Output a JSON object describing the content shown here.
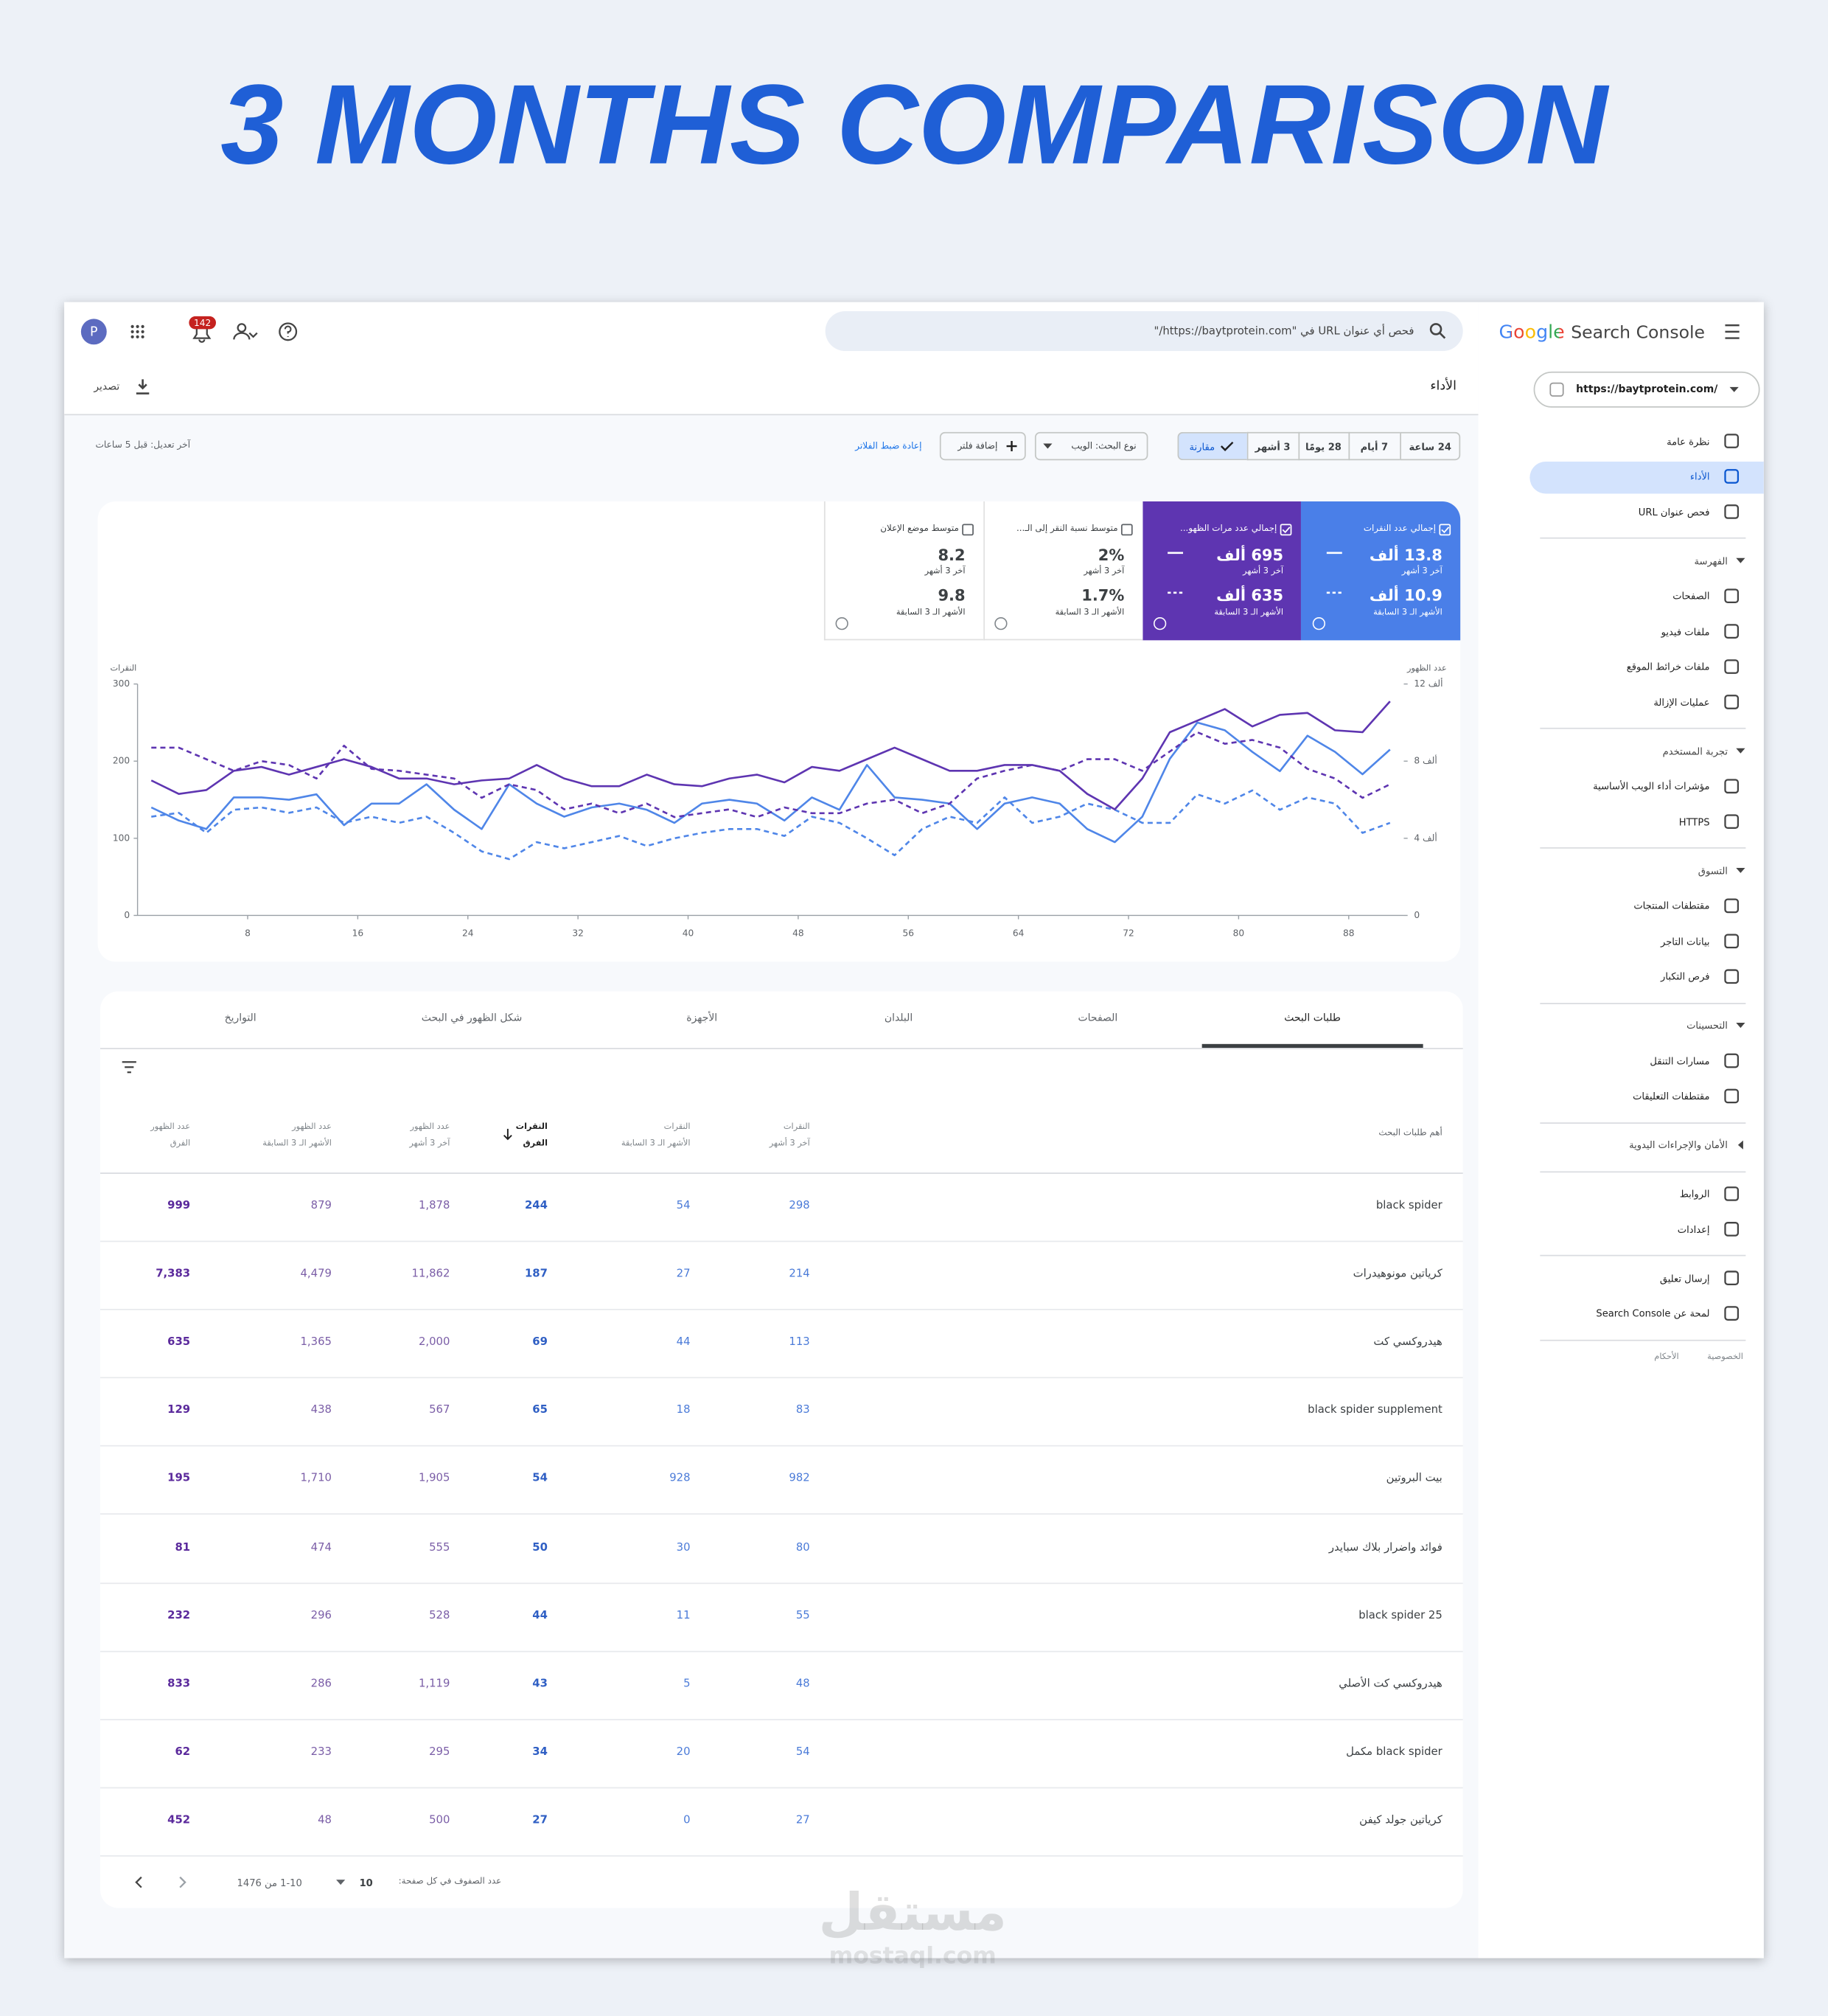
{
  "header": {
    "title": "3 MONTHS COMPARISON"
  },
  "topbar": {
    "avatar": "P",
    "badge": "142",
    "search": "فحص أي عنوان URL في \"https://baytprotein.com/\""
  },
  "sidebar": {
    "brand_google": "Google",
    "brand_product": "Search Console",
    "property": "https://baytprotein.com/",
    "groups": [
      {
        "items": [
          {
            "label": "نظرة عامة",
            "selected": false
          },
          {
            "label": "الأداء",
            "selected": true
          },
          {
            "label": "فحص عنوان URL",
            "selected": false
          }
        ]
      },
      {
        "section": "الفهرسة",
        "expanded": true,
        "items": [
          {
            "label": "الصفحات",
            "selected": false
          },
          {
            "label": "ملفات فيديو",
            "selected": false
          },
          {
            "label": "ملفات خرائط الموقع",
            "selected": false
          },
          {
            "label": "عمليات الإزالة",
            "selected": false
          }
        ]
      },
      {
        "section": "تجربة المستخدم",
        "expanded": true,
        "items": [
          {
            "label": "مؤشرات أداء الويب الأساسية",
            "selected": false
          },
          {
            "label": "HTTPS",
            "selected": false
          }
        ]
      },
      {
        "section": "التسوق",
        "expanded": true,
        "items": [
          {
            "label": "مقتطفات المنتجات",
            "selected": false
          },
          {
            "label": "بيانات التاجر",
            "selected": false
          },
          {
            "label": "فرص التكبار",
            "selected": false
          }
        ]
      },
      {
        "section": "التحسينات",
        "expanded": true,
        "items": [
          {
            "label": "مسارات التنقل",
            "selected": false
          },
          {
            "label": "مقتطفات التعليقات",
            "selected": false
          }
        ]
      },
      {
        "section": "الأمان والإجراءات اليدوية",
        "expanded": false,
        "items": []
      },
      {
        "items": [
          {
            "label": "الروابط",
            "selected": false
          },
          {
            "label": "إعدادات",
            "selected": false
          }
        ]
      },
      {
        "items": [
          {
            "label": "إرسال تعليق",
            "selected": false
          },
          {
            "label": "لمحة عن Search Console",
            "selected": false
          }
        ]
      }
    ],
    "footer": [
      "الخصوصية",
      "الأحكام"
    ]
  },
  "page": {
    "title": "الأداء",
    "export": "تصدير",
    "last_update": "آخر تعديل: قبل 5 ساعات",
    "date_ranges": [
      "24 ساعة",
      "7 أيام",
      "28 يومًا",
      "3 أشهر"
    ],
    "compare": "مقارنة",
    "search_type": "نوع البحث: الويب",
    "add_filter": "إضافة فلتر",
    "reset": "إعادة ضبط الفلاتر"
  },
  "metrics": [
    {
      "label": "إجمالي عدد النقرات",
      "current": "13.8 ألف",
      "current_period": "آخر 3 أشهر",
      "previous": "10.9 ألف",
      "previous_period": "الأشهر الـ 3 السابقة",
      "color": "#4a7fe8",
      "selected": true
    },
    {
      "label": "إجمالي عدد مرات الظهو...",
      "current": "695 ألف",
      "current_period": "آخر 3 أشهر",
      "previous": "635 ألف",
      "previous_period": "الأشهر الـ 3 السابقة",
      "color": "#5e35b1",
      "selected": true
    },
    {
      "label": "متوسط نسبة النقر إلى الـ...",
      "current": "2%",
      "current_period": "آخر 3 أشهر",
      "previous": "1.7%",
      "previous_period": "الأشهر الـ 3 السابقة",
      "color": "#ffffff",
      "selected": false
    },
    {
      "label": "متوسط موضع الإعلان",
      "current": "8.2",
      "current_period": "آخر 3 أشهر",
      "previous": "9.8",
      "previous_period": "الأشهر الـ 3 السابقة",
      "color": "#ffffff",
      "selected": false
    }
  ],
  "chart_data": {
    "type": "line",
    "ylabel": "النقرات",
    "y2label": "عدد الظهور",
    "grid": false,
    "x": [
      1,
      3,
      5,
      7,
      9,
      11,
      13,
      15,
      17,
      19,
      21,
      23,
      25,
      27,
      29,
      31,
      33,
      35,
      37,
      39,
      41,
      43,
      45,
      47,
      49,
      51,
      53,
      55,
      57,
      59,
      61,
      63,
      65,
      67,
      69,
      71,
      73,
      75,
      77,
      79,
      81,
      83,
      85,
      87,
      89,
      91
    ],
    "xlim": [
      0,
      92
    ],
    "xticks": [
      8,
      16,
      24,
      32,
      40,
      48,
      56,
      64,
      72,
      80,
      88
    ],
    "ylim": [
      0,
      300
    ],
    "yticks": [
      0,
      100,
      200,
      300
    ],
    "y2lim": [
      0,
      12000
    ],
    "y2ticks": [
      0,
      {
        "value": 4000,
        "label": "4 ألف"
      },
      {
        "value": 8000,
        "label": "8 ألف"
      },
      {
        "value": 12000,
        "label": "12 ألف"
      }
    ],
    "series": [
      {
        "color": "#4f86e8",
        "dashed": false,
        "values": [
          140,
          123,
          112,
          153,
          153,
          150,
          157,
          117,
          145,
          145,
          170,
          137,
          112,
          170,
          145,
          128,
          140,
          145,
          137,
          120,
          145,
          150,
          145,
          123,
          153,
          137,
          195,
          153,
          150,
          145,
          112,
          145,
          153,
          145,
          112,
          95,
          128,
          203,
          250,
          240,
          212,
          187,
          233,
          212,
          183,
          215
        ]
      },
      {
        "color": "#4f86e8",
        "dashed": true,
        "values": [
          128,
          133,
          107,
          137,
          140,
          133,
          140,
          120,
          128,
          120,
          128,
          107,
          83,
          73,
          95,
          87,
          95,
          103,
          90,
          100,
          107,
          112,
          112,
          103,
          128,
          120,
          100,
          78,
          112,
          128,
          120,
          153,
          120,
          128,
          145,
          137,
          120,
          120,
          157,
          145,
          162,
          137,
          153,
          145,
          107,
          120
        ]
      },
      {
        "color": "#5e35b1",
        "dashed": false,
        "axis": "y2",
        "values": [
          7000,
          6300,
          6500,
          7500,
          7700,
          7300,
          7700,
          8100,
          7700,
          7100,
          7100,
          6800,
          7000,
          7100,
          7800,
          7100,
          6700,
          6700,
          7300,
          6800,
          6700,
          7100,
          7300,
          6900,
          7700,
          7500,
          8100,
          8700,
          8100,
          7500,
          7500,
          7800,
          7800,
          7500,
          6300,
          5500,
          7100,
          9500,
          10100,
          10700,
          9800,
          10400,
          10500,
          9600,
          9500,
          11100
        ]
      },
      {
        "color": "#5e35b1",
        "dashed": true,
        "axis": "y2",
        "values": [
          8700,
          8700,
          8100,
          7500,
          8000,
          7800,
          7100,
          8800,
          7600,
          7500,
          7300,
          7100,
          6100,
          6800,
          6500,
          5500,
          5800,
          5300,
          5800,
          5100,
          5300,
          5500,
          5100,
          5600,
          5300,
          5300,
          5800,
          6000,
          5300,
          5800,
          7100,
          7500,
          7800,
          7500,
          8100,
          8100,
          7500,
          8500,
          9500,
          8900,
          9100,
          8700,
          7600,
          7100,
          6100,
          6800
        ]
      }
    ]
  },
  "table": {
    "tabs": [
      {
        "label": "طلبات البحث",
        "active": true
      },
      {
        "label": "الصفحات",
        "active": false
      },
      {
        "label": "البلدان",
        "active": false
      },
      {
        "label": "الأجهزة",
        "active": false
      },
      {
        "label": "شكل الظهور في البحث",
        "active": false
      },
      {
        "label": "التواريخ",
        "active": false
      }
    ],
    "query_header": "أهم طلبات البحث",
    "columns": [
      {
        "metric": "النقرات",
        "period": "آخر 3 أشهر",
        "color": "#4b7bd8",
        "bold": false,
        "sorted": false
      },
      {
        "metric": "النقرات",
        "period": "الأشهر الـ 3 السابقة",
        "color": "#4b7bd8",
        "bold": false,
        "sorted": false
      },
      {
        "metric": "النقرات",
        "period": "الفرق",
        "color": "#2f5fc4",
        "bold": true,
        "sorted": true
      },
      {
        "metric": "عدد الظهور",
        "period": "آخر 3 أشهر",
        "color": "#7b5ea7",
        "bold": false,
        "sorted": false
      },
      {
        "metric": "عدد الظهور",
        "period": "الأشهر الـ 3 السابقة",
        "color": "#7b5ea7",
        "bold": false,
        "sorted": false
      },
      {
        "metric": "عدد الظهور",
        "period": "الفرق",
        "color": "#5b2a9c",
        "bold": true,
        "sorted": false
      }
    ],
    "rows": [
      [
        "black spider",
        "298",
        "54",
        "244",
        "1,878",
        "879",
        "999"
      ],
      [
        "كرياتين مونوهيدرات",
        "214",
        "27",
        "187",
        "11,862",
        "4,479",
        "7,383"
      ],
      [
        "هيدروكسي كت",
        "113",
        "44",
        "69",
        "2,000",
        "1,365",
        "635"
      ],
      [
        "black spider supplement",
        "83",
        "18",
        "65",
        "567",
        "438",
        "129"
      ],
      [
        "بيت البروتين",
        "982",
        "928",
        "54",
        "1,905",
        "1,710",
        "195"
      ],
      [
        "فوائد واضرار بلاك سبايدر",
        "80",
        "30",
        "50",
        "555",
        "474",
        "81"
      ],
      [
        "black spider 25",
        "55",
        "11",
        "44",
        "528",
        "296",
        "232"
      ],
      [
        "هيدروكسي كت الأصلي",
        "48",
        "5",
        "43",
        "1,119",
        "286",
        "833"
      ],
      [
        "black spider مكمل",
        "54",
        "20",
        "34",
        "295",
        "233",
        "62"
      ],
      [
        "كرياتين جولد كيفن",
        "27",
        "0",
        "27",
        "500",
        "48",
        "452"
      ]
    ],
    "footer": {
      "rows_per_page_label": "عدد الصفوف في كل صفحة:",
      "rows_per_page": "10",
      "range": "1-10 من 1476"
    }
  },
  "watermark": {
    "arabic": "مستقل",
    "latin": "mostaql.com"
  }
}
